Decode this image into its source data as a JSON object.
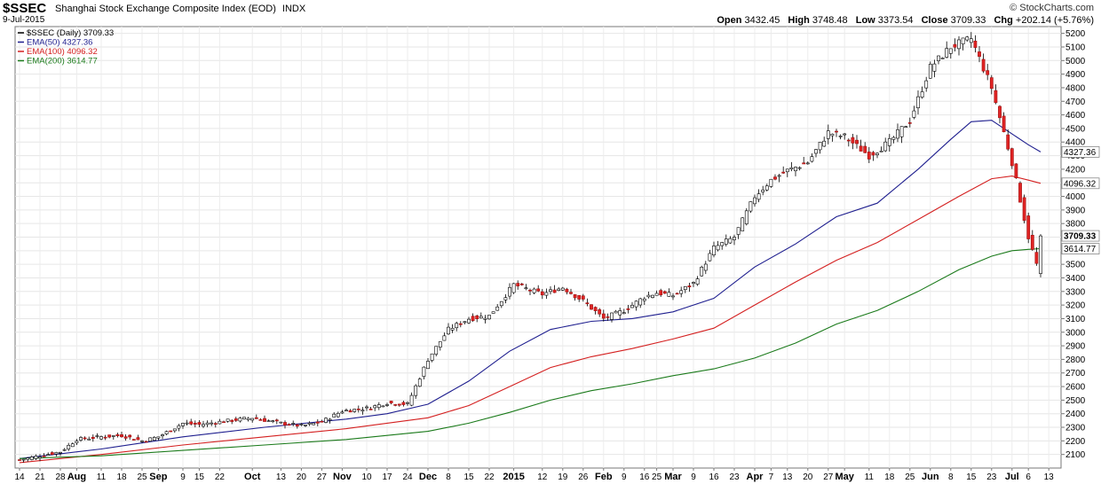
{
  "header": {
    "symbol": "$SSEC",
    "name": "Shanghai Stock Exchange Composite Index (EOD)",
    "exchange": "INDX",
    "date": "9-Jul-2015",
    "brand": "© StockCharts.com",
    "open_label": "Open",
    "open": "3432.45",
    "high_label": "High",
    "high": "3748.48",
    "low_label": "Low",
    "low": "3373.54",
    "close_label": "Close",
    "close": "3709.33",
    "chg_label": "Chg",
    "chg": "+202.14 (+5.76%)"
  },
  "legend": [
    {
      "label": "$SSEC (Daily) 3709.33",
      "color": "#000000"
    },
    {
      "label": "EMA(50) 4327.36",
      "color": "#1f1f8f"
    },
    {
      "label": "EMA(100) 4096.32",
      "color": "#d42020"
    },
    {
      "label": "EMA(200) 3614.77",
      "color": "#1a7a1a"
    }
  ],
  "chart_data": {
    "type": "line",
    "ylim": [
      2000,
      5250
    ],
    "yticks": [
      2100,
      2200,
      2300,
      2400,
      2500,
      2600,
      2700,
      2800,
      2900,
      3000,
      3100,
      3200,
      3300,
      3400,
      3500,
      3600,
      3700,
      3800,
      3900,
      4000,
      4100,
      4200,
      4300,
      4400,
      4500,
      4600,
      4700,
      4800,
      4900,
      5000,
      5100,
      5200
    ],
    "x_ticks": [
      {
        "label": "14",
        "b": 0
      },
      {
        "label": "21",
        "b": 5
      },
      {
        "label": "28",
        "b": 10
      },
      {
        "label": "Aug",
        "b": 14
      },
      {
        "label": "11",
        "b": 20
      },
      {
        "label": "18",
        "b": 25
      },
      {
        "label": "25",
        "b": 30
      },
      {
        "label": "Sep",
        "b": 34
      },
      {
        "label": "9",
        "b": 40
      },
      {
        "label": "15",
        "b": 44
      },
      {
        "label": "22",
        "b": 49
      },
      {
        "label": "Oct",
        "b": 57
      },
      {
        "label": "13",
        "b": 64
      },
      {
        "label": "20",
        "b": 69
      },
      {
        "label": "27",
        "b": 74
      },
      {
        "label": "Nov",
        "b": 79
      },
      {
        "label": "10",
        "b": 85
      },
      {
        "label": "17",
        "b": 90
      },
      {
        "label": "24",
        "b": 95
      },
      {
        "label": "Dec",
        "b": 100
      },
      {
        "label": "8",
        "b": 105
      },
      {
        "label": "15",
        "b": 110
      },
      {
        "label": "22",
        "b": 115
      },
      {
        "label": "2015",
        "b": 121
      },
      {
        "label": "12",
        "b": 128
      },
      {
        "label": "19",
        "b": 133
      },
      {
        "label": "26",
        "b": 138
      },
      {
        "label": "Feb",
        "b": 143
      },
      {
        "label": "9",
        "b": 148
      },
      {
        "label": "16",
        "b": 153
      },
      {
        "label": "25",
        "b": 156
      },
      {
        "label": "Mar",
        "b": 160
      },
      {
        "label": "9",
        "b": 165
      },
      {
        "label": "16",
        "b": 170
      },
      {
        "label": "23",
        "b": 175
      },
      {
        "label": "Apr",
        "b": 180
      },
      {
        "label": "7",
        "b": 184
      },
      {
        "label": "13",
        "b": 188
      },
      {
        "label": "20",
        "b": 193
      },
      {
        "label": "27",
        "b": 198
      },
      {
        "label": "May",
        "b": 202
      },
      {
        "label": "11",
        "b": 208
      },
      {
        "label": "18",
        "b": 213
      },
      {
        "label": "25",
        "b": 218
      },
      {
        "label": "Jun",
        "b": 223
      },
      {
        "label": "8",
        "b": 228
      },
      {
        "label": "15",
        "b": 233
      },
      {
        "label": "23",
        "b": 238
      },
      {
        "label": "Jul",
        "b": 243
      },
      {
        "label": "6",
        "b": 247
      },
      {
        "label": "13",
        "b": 252
      }
    ],
    "price_path": [
      [
        0,
        2060
      ],
      [
        10,
        2120
      ],
      [
        14,
        2210
      ],
      [
        20,
        2230
      ],
      [
        25,
        2240
      ],
      [
        30,
        2200
      ],
      [
        34,
        2230
      ],
      [
        40,
        2330
      ],
      [
        44,
        2320
      ],
      [
        49,
        2340
      ],
      [
        57,
        2370
      ],
      [
        64,
        2330
      ],
      [
        69,
        2310
      ],
      [
        74,
        2340
      ],
      [
        79,
        2420
      ],
      [
        85,
        2440
      ],
      [
        90,
        2480
      ],
      [
        95,
        2470
      ],
      [
        100,
        2800
      ],
      [
        105,
        3020
      ],
      [
        110,
        3100
      ],
      [
        115,
        3120
      ],
      [
        121,
        3350
      ],
      [
        128,
        3280
      ],
      [
        133,
        3330
      ],
      [
        138,
        3230
      ],
      [
        143,
        3100
      ],
      [
        148,
        3160
      ],
      [
        153,
        3260
      ],
      [
        156,
        3290
      ],
      [
        160,
        3270
      ],
      [
        165,
        3360
      ],
      [
        170,
        3620
      ],
      [
        175,
        3700
      ],
      [
        180,
        4000
      ],
      [
        184,
        4120
      ],
      [
        188,
        4190
      ],
      [
        193,
        4250
      ],
      [
        198,
        4470
      ],
      [
        202,
        4440
      ],
      [
        208,
        4300
      ],
      [
        213,
        4400
      ],
      [
        218,
        4560
      ],
      [
        223,
        4950
      ],
      [
        228,
        5100
      ],
      [
        233,
        5160
      ],
      [
        238,
        4800
      ],
      [
        243,
        4250
      ],
      [
        247,
        3700
      ],
      [
        249,
        3500
      ],
      [
        250,
        3709
      ]
    ],
    "series": [
      {
        "name": "EMA(50)",
        "color": "#1f1f8f",
        "values": [
          [
            0,
            2070
          ],
          [
            20,
            2140
          ],
          [
            40,
            2230
          ],
          [
            60,
            2300
          ],
          [
            80,
            2360
          ],
          [
            90,
            2400
          ],
          [
            100,
            2470
          ],
          [
            110,
            2640
          ],
          [
            120,
            2860
          ],
          [
            130,
            3020
          ],
          [
            140,
            3080
          ],
          [
            150,
            3100
          ],
          [
            160,
            3150
          ],
          [
            170,
            3250
          ],
          [
            180,
            3480
          ],
          [
            190,
            3650
          ],
          [
            200,
            3850
          ],
          [
            210,
            3950
          ],
          [
            220,
            4200
          ],
          [
            228,
            4420
          ],
          [
            233,
            4550
          ],
          [
            238,
            4560
          ],
          [
            243,
            4460
          ],
          [
            247,
            4380
          ],
          [
            250,
            4327
          ]
        ]
      },
      {
        "name": "EMA(100)",
        "color": "#d42020",
        "values": [
          [
            0,
            2040
          ],
          [
            20,
            2100
          ],
          [
            40,
            2170
          ],
          [
            60,
            2230
          ],
          [
            80,
            2290
          ],
          [
            100,
            2370
          ],
          [
            110,
            2460
          ],
          [
            120,
            2600
          ],
          [
            130,
            2740
          ],
          [
            140,
            2820
          ],
          [
            150,
            2880
          ],
          [
            160,
            2950
          ],
          [
            170,
            3030
          ],
          [
            180,
            3200
          ],
          [
            190,
            3370
          ],
          [
            200,
            3530
          ],
          [
            210,
            3660
          ],
          [
            220,
            3830
          ],
          [
            230,
            4000
          ],
          [
            238,
            4130
          ],
          [
            243,
            4150
          ],
          [
            247,
            4120
          ],
          [
            250,
            4096
          ]
        ]
      },
      {
        "name": "EMA(200)",
        "color": "#1a7a1a",
        "values": [
          [
            0,
            2070
          ],
          [
            20,
            2090
          ],
          [
            40,
            2130
          ],
          [
            60,
            2170
          ],
          [
            80,
            2210
          ],
          [
            100,
            2270
          ],
          [
            110,
            2330
          ],
          [
            120,
            2410
          ],
          [
            130,
            2500
          ],
          [
            140,
            2570
          ],
          [
            150,
            2620
          ],
          [
            160,
            2680
          ],
          [
            170,
            2730
          ],
          [
            180,
            2810
          ],
          [
            190,
            2920
          ],
          [
            200,
            3060
          ],
          [
            210,
            3160
          ],
          [
            220,
            3300
          ],
          [
            230,
            3460
          ],
          [
            238,
            3560
          ],
          [
            243,
            3600
          ],
          [
            247,
            3610
          ],
          [
            250,
            3615
          ]
        ]
      }
    ],
    "price_box_labels": [
      {
        "value": 4327.36,
        "text": "4327.36",
        "bold": false
      },
      {
        "value": 4096.32,
        "text": "4096.32",
        "bold": false
      },
      {
        "value": 3709.33,
        "text": "3709.33",
        "bold": true
      },
      {
        "value": 3614.77,
        "text": "3614.77",
        "bold": false
      }
    ]
  }
}
